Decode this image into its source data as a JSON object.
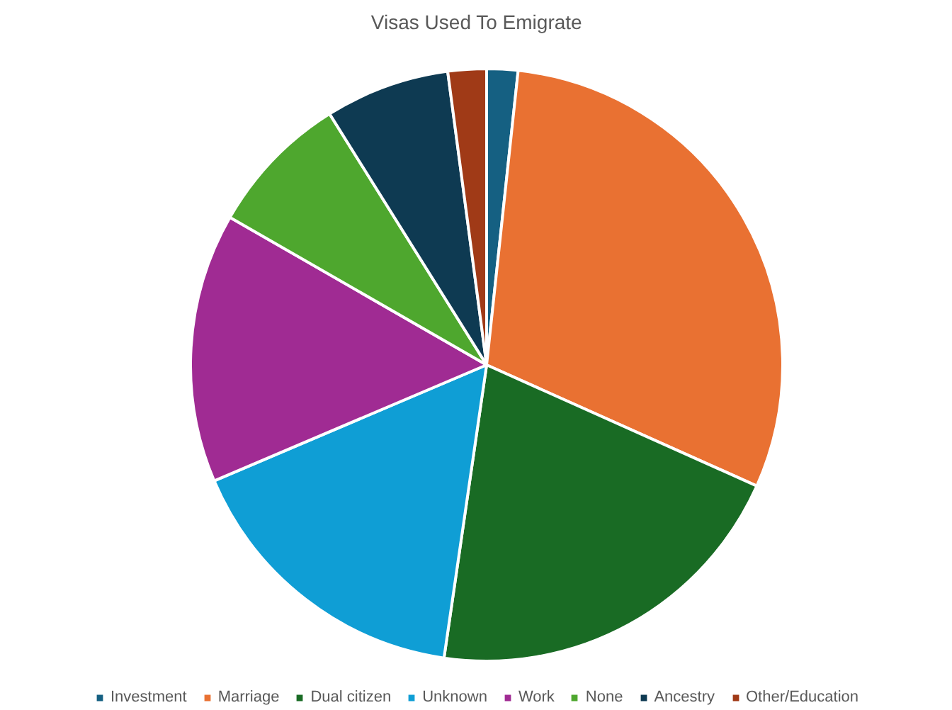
{
  "chart_data": {
    "type": "pie",
    "title": "Visas Used To Emigrate",
    "categories": [
      "Investment",
      "Marriage",
      "Dual citizen",
      "Unknown",
      "Work",
      "None",
      "Ancestry",
      "Other/Education"
    ],
    "values": [
      1.7,
      30,
      20.6,
      16.3,
      14.7,
      7.8,
      6.8,
      2.1
    ],
    "colors": [
      "#156082",
      "#e97132",
      "#196b24",
      "#0f9ed5",
      "#a02b93",
      "#4ea72e",
      "#0e3a52",
      "#a03a17"
    ],
    "legend": "bottom"
  }
}
